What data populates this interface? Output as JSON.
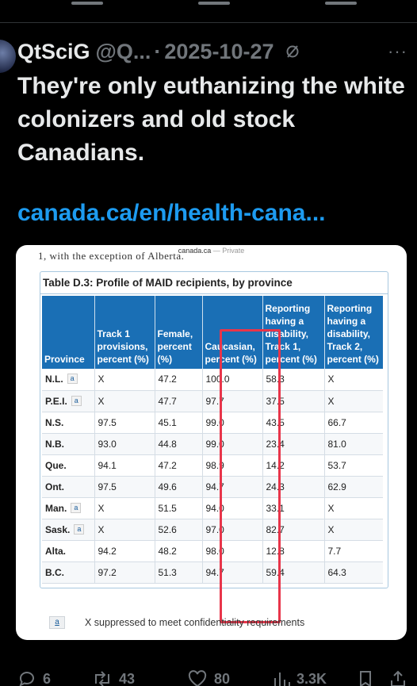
{
  "post": {
    "display_name": "QtSciG",
    "handle": "@Q...",
    "separator": "·",
    "date": "2025-10-27",
    "text": "They're only euthanizing the white colonizers and old stock Canadians.",
    "link": "canada.ca/en/health-cana..."
  },
  "image": {
    "source_domain": "canada.ca",
    "source_privacy": "— Private",
    "cut_text": "1, with the exception of Alberta.",
    "table_title": "Table D.3: Profile of MAID recipients, by province",
    "headers": [
      "Province",
      "Track 1 provisions, percent (%)",
      "Female, percent (%)",
      "Caucasian, percent (%)",
      "Reporting having a disability, Track 1, percent (%)",
      "Reporting having a disability, Track 2, percent (%)"
    ],
    "rows": [
      {
        "province": "N.L.",
        "note": "a",
        "track1": "X",
        "female": "47.2",
        "caucasian": "100.0",
        "dis1": "58.3",
        "dis2": "X"
      },
      {
        "province": "P.E.I.",
        "note": "a",
        "track1": "X",
        "female": "47.7",
        "caucasian": "97.7",
        "dis1": "37.5",
        "dis2": "X"
      },
      {
        "province": "N.S.",
        "note": "",
        "track1": "97.5",
        "female": "45.1",
        "caucasian": "99.0",
        "dis1": "43.5",
        "dis2": "66.7"
      },
      {
        "province": "N.B.",
        "note": "",
        "track1": "93.0",
        "female": "44.8",
        "caucasian": "99.0",
        "dis1": "23.4",
        "dis2": "81.0"
      },
      {
        "province": "Que.",
        "note": "",
        "track1": "94.1",
        "female": "47.2",
        "caucasian": "98.9",
        "dis1": "14.2",
        "dis2": "53.7"
      },
      {
        "province": "Ont.",
        "note": "",
        "track1": "97.5",
        "female": "49.6",
        "caucasian": "94.7",
        "dis1": "24.3",
        "dis2": "62.9"
      },
      {
        "province": "Man.",
        "note": "a",
        "track1": "X",
        "female": "51.5",
        "caucasian": "94.0",
        "dis1": "33.1",
        "dis2": "X"
      },
      {
        "province": "Sask.",
        "note": "a",
        "track1": "X",
        "female": "52.6",
        "caucasian": "97.0",
        "dis1": "82.7",
        "dis2": "X"
      },
      {
        "province": "Alta.",
        "note": "",
        "track1": "94.2",
        "female": "48.2",
        "caucasian": "98.0",
        "dis1": "12.8",
        "dis2": "7.7"
      },
      {
        "province": "B.C.",
        "note": "",
        "track1": "97.2",
        "female": "51.3",
        "caucasian": "94.7",
        "dis1": "59.4",
        "dis2": "64.3"
      }
    ],
    "footnote_key": "a",
    "footnote_text": "X suppressed to meet confidentiality requirements",
    "highlight_color": "#e8354a",
    "header_color": "#1a6fb5"
  },
  "actions": {
    "replies": "6",
    "reposts": "43",
    "likes": "80",
    "views": "3.3K"
  },
  "colors": {
    "background": "#000000",
    "link": "#1d9bf0",
    "muted": "#71767b"
  }
}
